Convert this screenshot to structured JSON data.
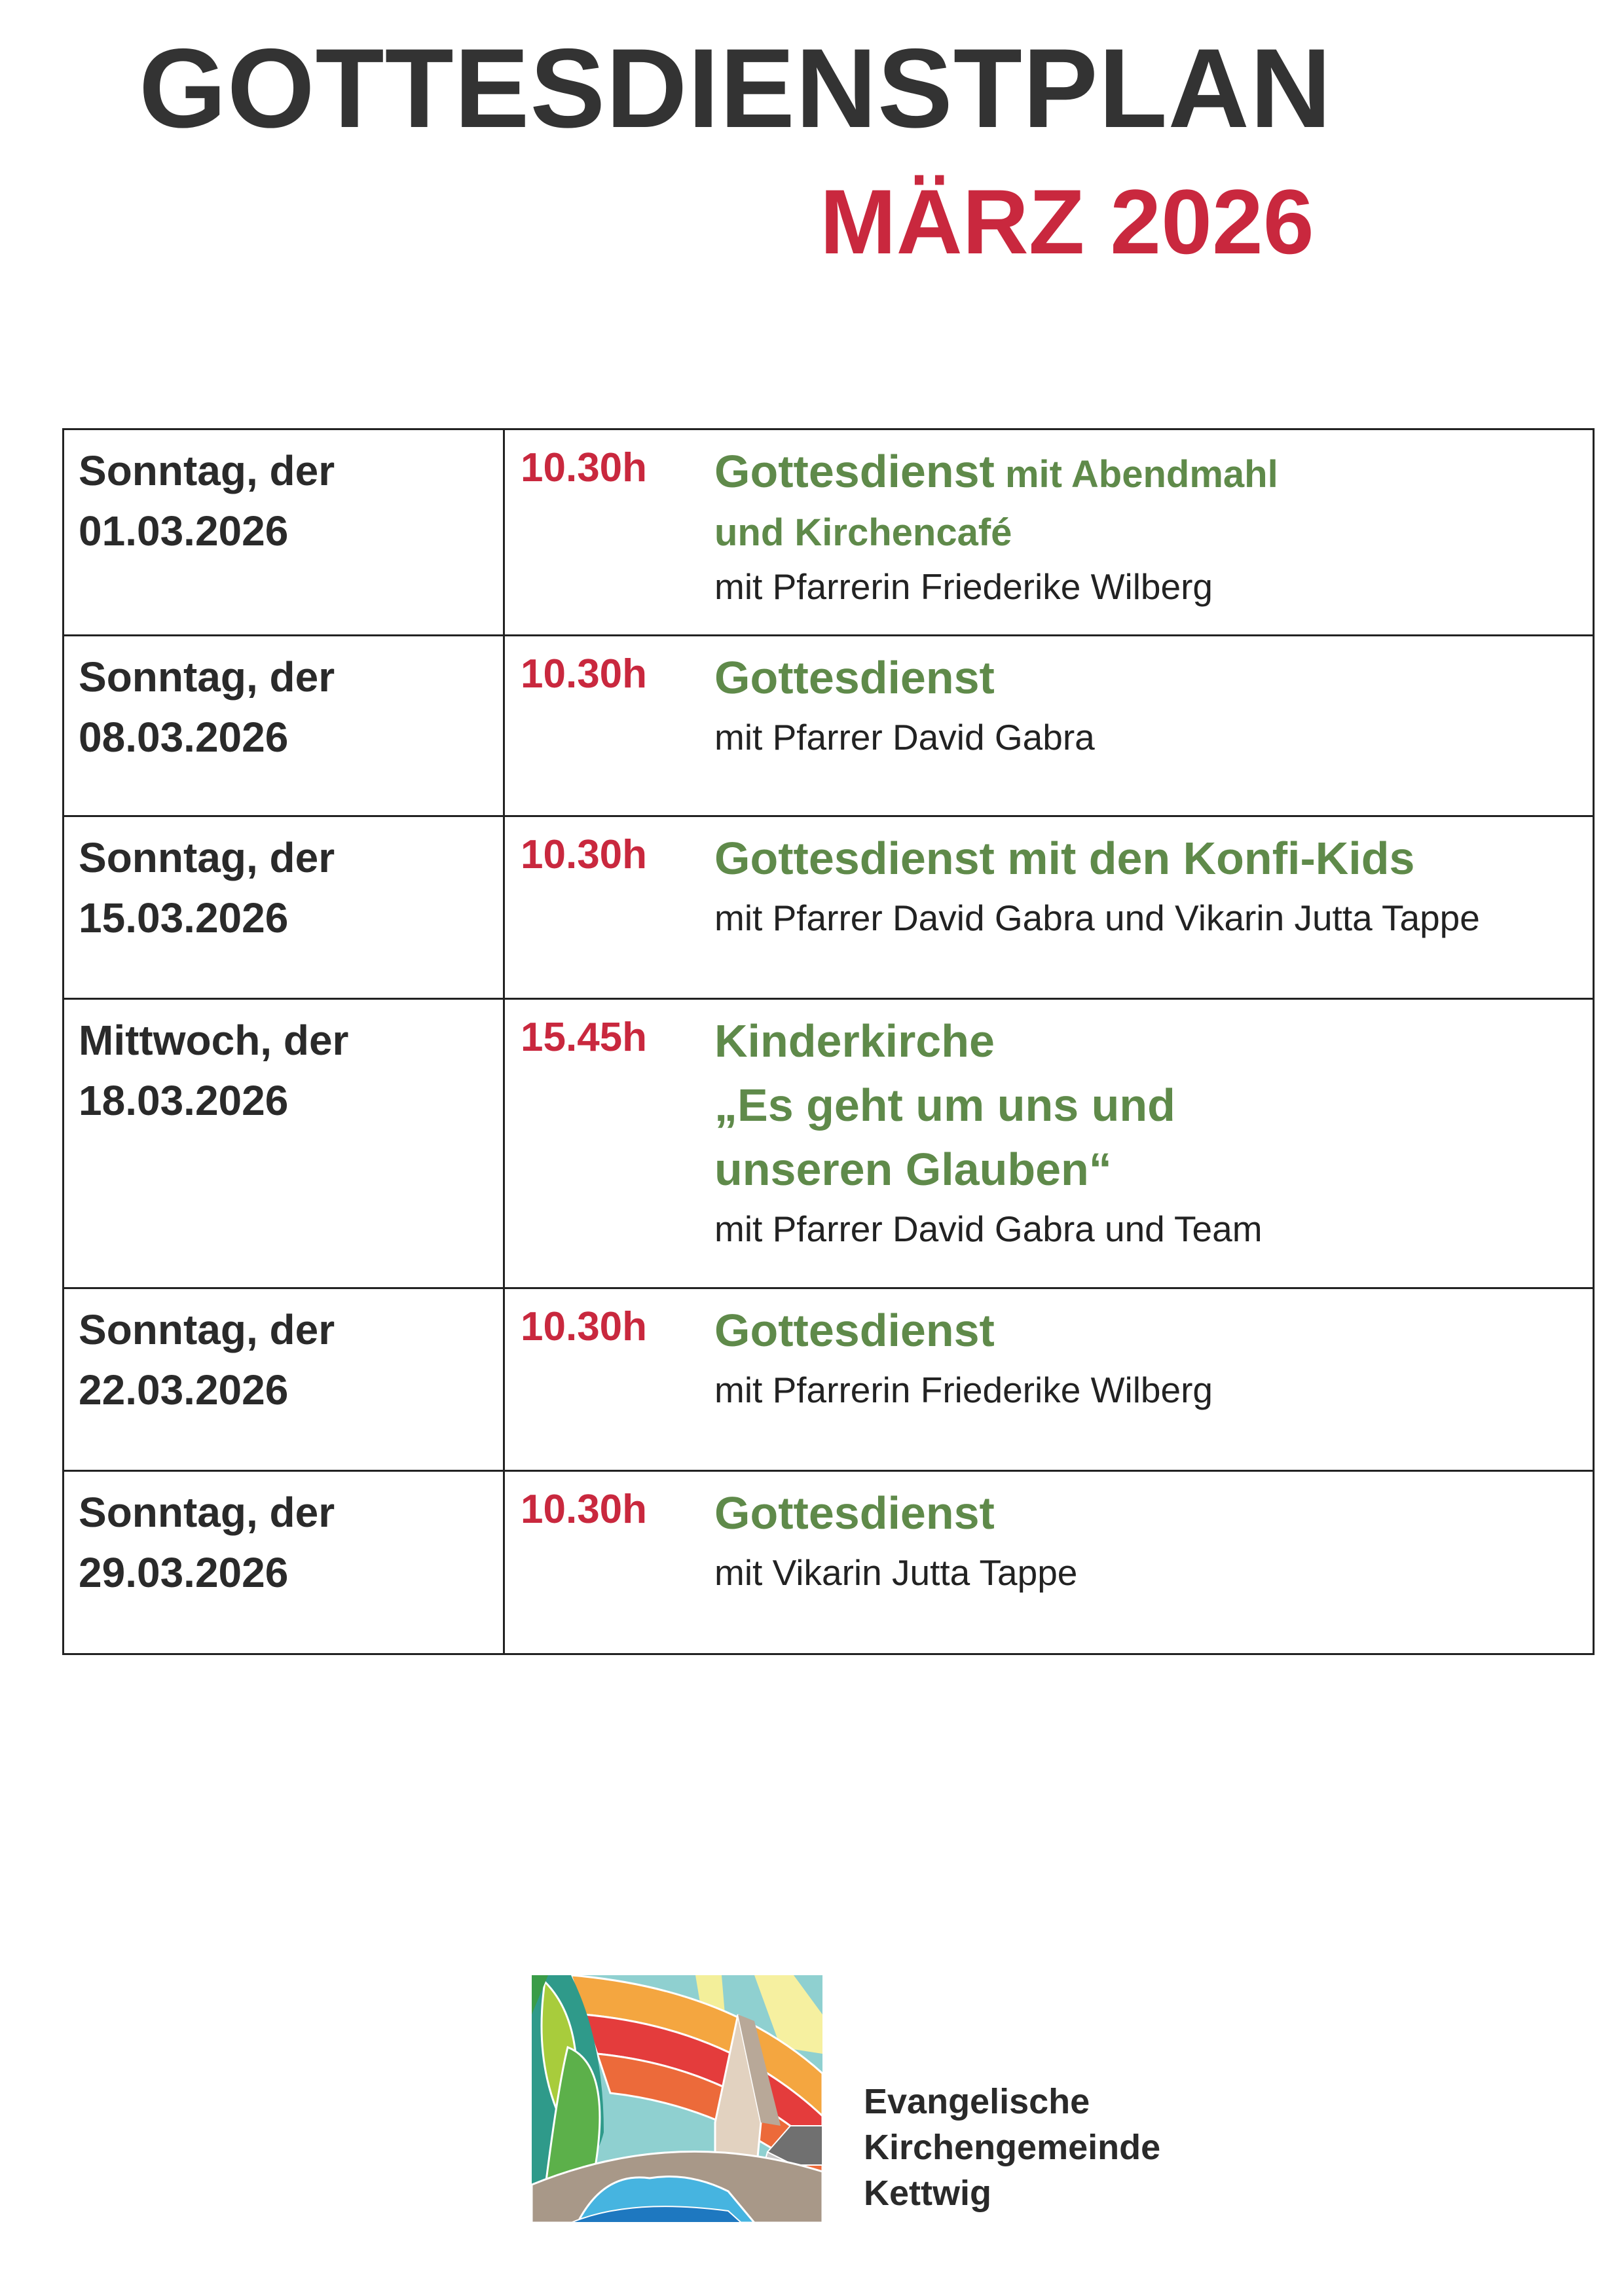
{
  "header": {
    "title": "GOTTESDIENSTPLAN",
    "month": "MÄRZ 2026"
  },
  "colors": {
    "accent_red": "#c9283e",
    "accent_green": "#5f8a4a",
    "text": "#2e2e2e"
  },
  "services": [
    {
      "day": "Sonntag, der",
      "date": "01.03.2026",
      "time": "10.30h",
      "title": "Gottesdienst",
      "title_extra": " mit Abendmahl",
      "title_line2": "und Kirchencafé",
      "detail": "mit Pfarrerin Friederike Wilberg"
    },
    {
      "day": "Sonntag, der",
      "date": "08.03.2026",
      "time": "10.30h",
      "title": "Gottesdienst",
      "detail": "mit Pfarrer David Gabra"
    },
    {
      "day": "Sonntag, der",
      "date": "15.03.2026",
      "time": "10.30h",
      "title": "Gottesdienst mit den Konfi-Kids",
      "detail": "mit Pfarrer David Gabra und Vikarin Jutta Tappe"
    },
    {
      "day": "Mittwoch, der",
      "date": "18.03.2026",
      "time": "15.45h",
      "title": "Kinderkirche",
      "title_line2": "„Es geht um uns und",
      "title_line3": "unseren Glauben“",
      "detail": "mit Pfarrer David Gabra und Team"
    },
    {
      "day": "Sonntag, der",
      "date": "22.03.2026",
      "time": "10.30h",
      "title": "Gottesdienst",
      "detail": "mit Pfarrerin Friederike Wilberg"
    },
    {
      "day": "Sonntag, der",
      "date": "29.03.2026",
      "time": "10.30h",
      "title": "Gottesdienst",
      "detail": "mit Vikarin Jutta Tappe"
    }
  ],
  "footer": {
    "org_line1": "Evangelische",
    "org_line2": "Kirchengemeinde",
    "org_line3": "Kettwig",
    "logo_icon": "church-rainbow-logo"
  }
}
